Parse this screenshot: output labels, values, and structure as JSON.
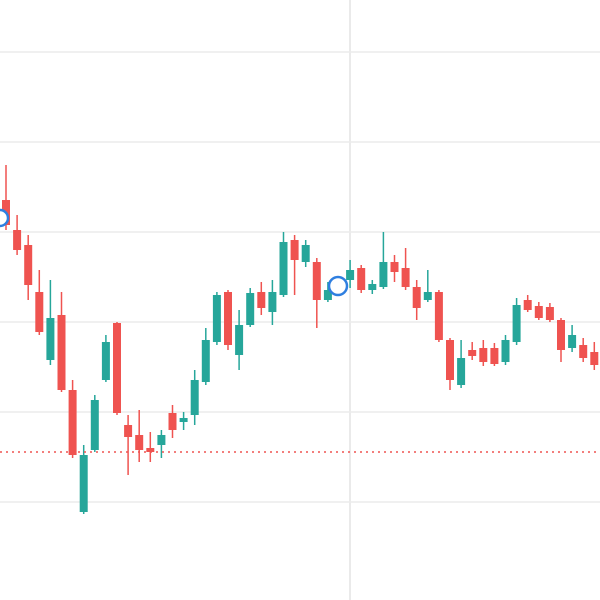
{
  "chart_data": {
    "type": "candlestick",
    "ylim": [
      0,
      600
    ],
    "grid_lines": [
      548,
      458,
      368,
      278,
      188,
      98
    ],
    "up_color": "#26a69a",
    "down_color": "#ef5350",
    "price_line": 148,
    "price_line_color": "#ef5350",
    "open": [
      400,
      370,
      355,
      308,
      240,
      285,
      210,
      88,
      150,
      220,
      277,
      175,
      165,
      152,
      155,
      187,
      178,
      185,
      218,
      258,
      308,
      245,
      275,
      308,
      288,
      305,
      360,
      338,
      338,
      300,
      310,
      320,
      332,
      310,
      313,
      338,
      332,
      313,
      300,
      308,
      260,
      215,
      250,
      252,
      252,
      238,
      258,
      300,
      294,
      293,
      280,
      252,
      255,
      248
    ],
    "high": [
      435,
      385,
      365,
      330,
      320,
      308,
      220,
      155,
      205,
      265,
      278,
      185,
      190,
      168,
      170,
      195,
      188,
      230,
      272,
      308,
      310,
      290,
      312,
      318,
      320,
      368,
      365,
      360,
      342,
      318,
      322,
      340,
      335,
      320,
      368,
      345,
      352,
      320,
      330,
      310,
      262,
      260,
      258,
      260,
      257,
      265,
      302,
      305,
      298,
      297,
      282,
      275,
      262,
      258
    ],
    "low": [
      370,
      345,
      300,
      265,
      235,
      208,
      142,
      86,
      148,
      218,
      185,
      125,
      138,
      138,
      142,
      162,
      170,
      175,
      215,
      255,
      250,
      230,
      273,
      285,
      275,
      303,
      305,
      333,
      272,
      298,
      304,
      312,
      307,
      306,
      311,
      318,
      310,
      280,
      298,
      258,
      210,
      212,
      240,
      234,
      234,
      235,
      255,
      288,
      280,
      278,
      238,
      248,
      238,
      230
    ],
    "close": [
      375,
      350,
      315,
      268,
      282,
      210,
      145,
      145,
      200,
      258,
      187,
      163,
      150,
      148,
      165,
      170,
      182,
      220,
      260,
      305,
      255,
      275,
      307,
      292,
      308,
      358,
      340,
      355,
      300,
      310,
      316,
      330,
      310,
      316,
      338,
      328,
      313,
      292,
      308,
      260,
      220,
      242,
      244,
      238,
      236,
      260,
      295,
      290,
      282,
      280,
      250,
      265,
      242,
      235
    ]
  }
}
